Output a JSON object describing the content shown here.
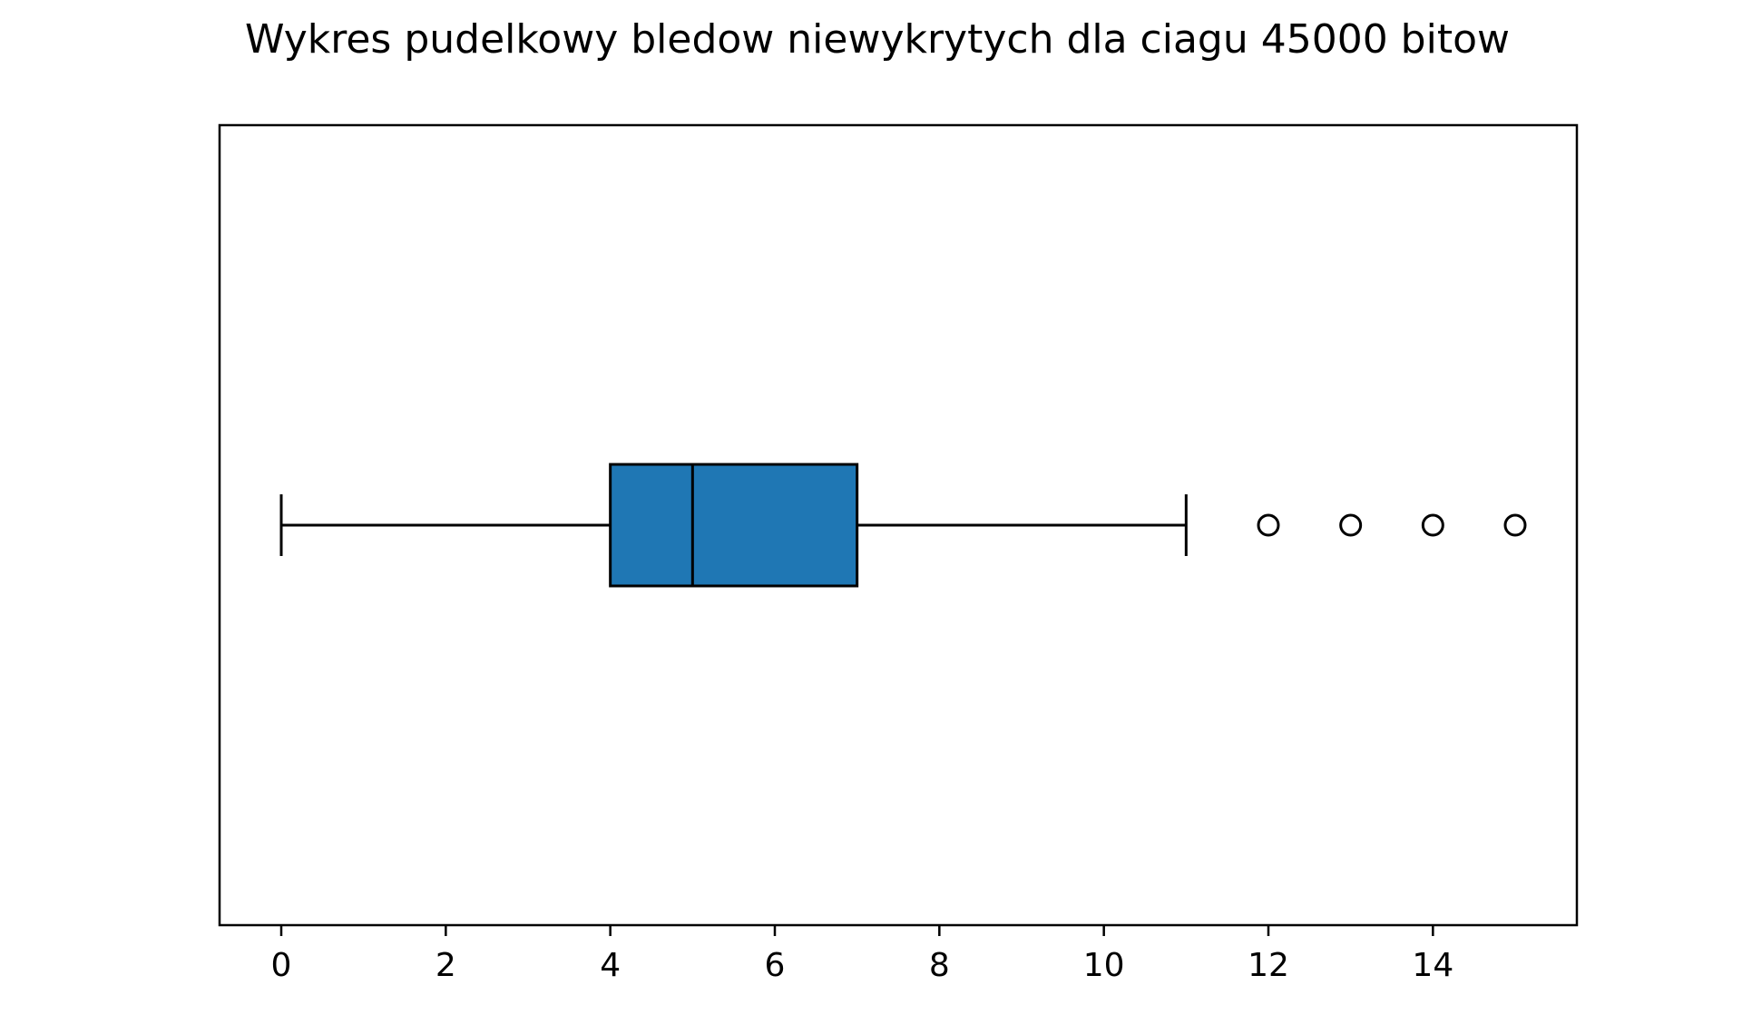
{
  "chart_data": {
    "type": "boxplot",
    "orientation": "horizontal",
    "title": "Wykres pudelkowy bledow niewykrytych dla ciagu 45000 bitow",
    "xlabel": "",
    "ylabel": "",
    "xlim": [
      -0.75,
      15.75
    ],
    "xticks": [
      0,
      2,
      4,
      6,
      8,
      10,
      12,
      14
    ],
    "xtick_labels": [
      "0",
      "2",
      "4",
      "6",
      "8",
      "10",
      "12",
      "14"
    ],
    "grid": false,
    "legend": "none",
    "box": {
      "whisker_low": 0,
      "q1": 4,
      "median": 5,
      "q3": 7,
      "whisker_high": 11,
      "fliers": [
        12,
        13,
        14,
        15
      ],
      "fill_color": "#1f77b4"
    }
  }
}
